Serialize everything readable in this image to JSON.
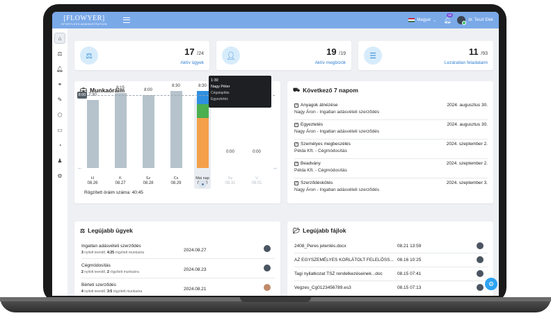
{
  "brand": {
    "name": "[FLOWYER]",
    "tagline": "EFORTLESS ADMINISTRATION"
  },
  "header": {
    "language": "Magyar",
    "notifications_count": "65",
    "user_name": "dr. Teszt Elek"
  },
  "sidebar": {
    "items": [
      "home-icon",
      "scale-icon",
      "bell-icon",
      "handshake-icon",
      "edit-icon",
      "cube-icon",
      "id-card-icon",
      "pie-chart-icon",
      "chess-icon",
      "gear-icon"
    ]
  },
  "stats": [
    {
      "value": "17",
      "total": "/24",
      "label": "Aktív ügyek",
      "icon": "scale-icon"
    },
    {
      "value": "19",
      "total": "/19",
      "label": "Aktív megbízók",
      "icon": "user-icon"
    },
    {
      "value": "11",
      "total": "/93",
      "label": "Lezáratlan feladataim",
      "icon": "tasks-icon"
    }
  ],
  "hours": {
    "title": "Munkaóráim",
    "reference": "8:00",
    "tooltip": {
      "time": "1:30",
      "name": "Nagy Péter",
      "line1": "Cégalapítás",
      "line2": "Egyeztetés"
    },
    "logged_label": "Rögzített óráim száma: 40:45"
  },
  "chart_data": {
    "type": "bar",
    "categories": [
      "H 08.26",
      "K 08.27",
      "Sz 08.28",
      "Cs 08.29",
      "Mai nap 08.30",
      "Sz 08.31",
      "V 09.01"
    ],
    "days": [
      {
        "name": "H",
        "date": "08.26",
        "label": "7:30",
        "value": 7.5
      },
      {
        "name": "K",
        "date": "08.27",
        "label": "8:15",
        "value": 8.25
      },
      {
        "name": "Sz",
        "date": "08.28",
        "label": "8:00",
        "value": 8.0
      },
      {
        "name": "Cs",
        "date": "08.29",
        "label": "8:30",
        "value": 8.5
      },
      {
        "name": "Mai nap",
        "date": "08.30",
        "label": "8:30",
        "value": 8.5
      },
      {
        "name": "Sz",
        "date": "08.31",
        "label": "0:00",
        "value": 0
      },
      {
        "name": "V",
        "date": "09.01",
        "label": "0:00",
        "value": 0
      }
    ],
    "today_segments": [
      {
        "value": 5.5,
        "color": "#f4a04a"
      },
      {
        "value": 1.5,
        "color": "#4caf50"
      },
      {
        "value": 1.5,
        "color": "#2f8fe0"
      }
    ],
    "ylim": [
      0,
      10
    ],
    "reference_value": 8
  },
  "next7": {
    "title": "Következő 7 napom",
    "events": [
      {
        "title": "Anyagok átnézése",
        "date": "2024. augusztus 30.",
        "desc": "Nagy Áron - Ingatlan adásvételi szerződés"
      },
      {
        "title": "Egyeztetés",
        "date": "2024. augusztus 30.",
        "desc": "Nagy Áron - Ingatlan adásvételi szerződés"
      },
      {
        "title": "Személyes megbeszélés",
        "date": "2024. szeptember 2.",
        "desc": "Példa Kft. - Cégmódosítás"
      },
      {
        "title": "Beadvány",
        "date": "2024. szeptember 2.",
        "desc": "Példa Kft. - Cégmódosítás"
      },
      {
        "title": "Szerződéskötés",
        "date": "2024. szeptember 3.",
        "desc": "Nagy Áron - Ingatlan adásvételi szerződés"
      }
    ]
  },
  "cases": {
    "title": "Legújabb ügyek",
    "rows": [
      {
        "name": "Ingatlan adásvételi szerződés",
        "open": "3",
        "open_label": "nyitott teendő,",
        "hours": "4:25",
        "hours_label": "rögzített munkaóra",
        "date": "2024.08.27"
      },
      {
        "name": "Cégmódosítás",
        "open": "2",
        "open_label": "nyitott teendő,",
        "hours": "2",
        "hours_label": "rögzített munkaóra",
        "date": "2024.08.23"
      },
      {
        "name": "Bérleti szerződés",
        "open": "4",
        "open_label": "nyitott teendő,",
        "hours": "3:5",
        "hours_label": "rögzített munkaóra",
        "date": "2024.08.21"
      }
    ]
  },
  "files": {
    "title": "Legújabb fájlok",
    "rows": [
      {
        "name": "2408_Peres jelentés.docx",
        "date": "08.21 13:59"
      },
      {
        "name": "AZ EGYSZEMÉLYES KORLÁTOLT FELELŐSS...",
        "date": "08.16 10:25"
      },
      {
        "name": "Tagi nyilatkozat TSZ rendelkezéseinek...doc",
        "date": "08.15 07:41"
      },
      {
        "name": "Vegzes_Cg0123456789.es3",
        "date": "08.15 07:13"
      }
    ]
  }
}
